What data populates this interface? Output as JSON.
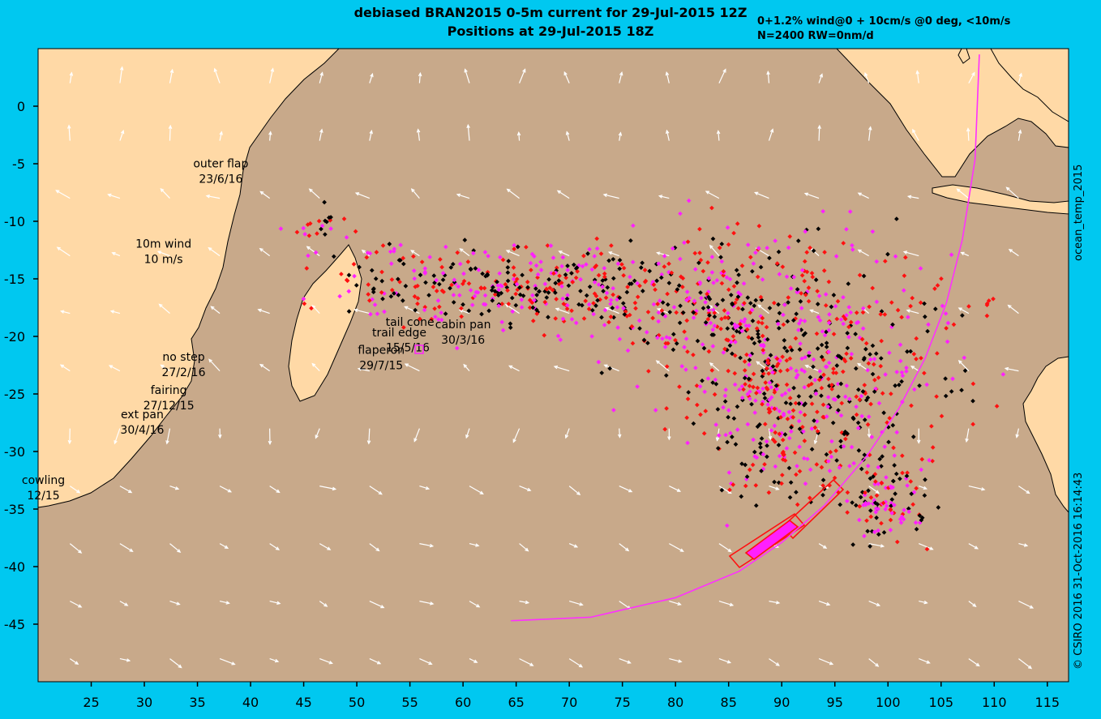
{
  "title_line1": "debiased BRAN2015 0-5m current for 29-Jul-2015 12Z",
  "title_line2": "Positions at 29-Jul-2015 18Z",
  "subtitle_line1": "0+1.2% wind@0 + 10cm/s @0 deg, <10m/s",
  "subtitle_line2": "N=2400 RW=0nm/d",
  "right_label": "ocean_temp_2015",
  "right_stamp": "© CSIRO 2016  31-Oct-2016 16:14:43",
  "colors": {
    "background": "#00c8f0",
    "ocean": "#c8a98a",
    "land": "#ffd9a6",
    "arrow": "#ffffff",
    "red": "#ff1010",
    "magenta": "#ff20ff",
    "black": "#000000",
    "track": "#ff30ff"
  },
  "chart_data": {
    "type": "map",
    "xlim": [
      20,
      117
    ],
    "ylim": [
      -50,
      5
    ],
    "x_ticks": [
      25,
      30,
      35,
      40,
      45,
      50,
      55,
      60,
      65,
      70,
      75,
      80,
      85,
      90,
      95,
      100,
      105,
      110,
      115
    ],
    "y_ticks": [
      0,
      -5,
      -10,
      -15,
      -20,
      -25,
      -30,
      -35,
      -40,
      -45
    ],
    "annotations": [
      {
        "lines": [
          "outer flap",
          "23/6/16"
        ],
        "lon": 37.2,
        "lat": -5.3
      },
      {
        "lines": [
          "10m wind",
          "10 m/s"
        ],
        "lon": 31.8,
        "lat": -12.3
      },
      {
        "lines": [
          "no step",
          "27/2/16"
        ],
        "lon": 33.7,
        "lat": -22.1
      },
      {
        "lines": [
          "fairing",
          "27/12/15"
        ],
        "lon": 32.3,
        "lat": -25.0
      },
      {
        "lines": [
          "ext pan",
          "30/4/16"
        ],
        "lon": 29.8,
        "lat": -27.1
      },
      {
        "lines": [
          "cowling",
          "12/15"
        ],
        "lon": 20.5,
        "lat": -32.8
      },
      {
        "lines": [
          "tail cone"
        ],
        "lon": 55.0,
        "lat": -19.1
      },
      {
        "lines": [
          "cabin pan",
          "30/3/16"
        ],
        "lon": 60.0,
        "lat": -19.3
      },
      {
        "lines": [
          "trail edge"
        ],
        "lon": 54.0,
        "lat": -20.0
      },
      {
        "lines": [
          "flaperon",
          "29/7/15"
        ],
        "lon": 52.3,
        "lat": -21.5
      },
      {
        "lines": [
          "15/5/16"
        ],
        "lon": 54.8,
        "lat": -21.3
      }
    ],
    "search_track": [
      [
        64.5,
        -44.7
      ],
      [
        72,
        -44.4
      ],
      [
        80,
        -42.7
      ],
      [
        86,
        -40.4
      ],
      [
        90,
        -37.9
      ],
      [
        94,
        -34.7
      ],
      [
        98,
        -30.4
      ],
      [
        101,
        -26.3
      ],
      [
        103.5,
        -21.9
      ],
      [
        105.5,
        -17.1
      ],
      [
        107,
        -11.6
      ],
      [
        108.2,
        -4.6
      ],
      [
        108.6,
        4.5
      ]
    ],
    "search_areas": [
      {
        "lon1": 86.2,
        "lat1": -39.4,
        "lon2": 91.8,
        "lat2": -36.3
      },
      {
        "lon1": 90.5,
        "lat1": -37.8,
        "lon2": 95.8,
        "lat2": -32.9
      }
    ],
    "particle_cloud": {
      "lon_range": [
        44,
        110
      ],
      "lat_range": [
        -39,
        -6
      ],
      "count": 2400,
      "colors": [
        "red",
        "magenta",
        "black"
      ]
    }
  }
}
